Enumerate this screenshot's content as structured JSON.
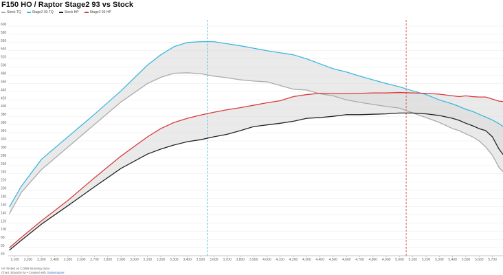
{
  "header": {
    "title": "F150 HO / Raptor  Stage2 93 vs Stock"
  },
  "footer": {
    "note": "Hs Tested on COBB Mustang Dyno",
    "credit_prefix": "Chart: Brandon M • Created with",
    "credit_link": "Datawrapper"
  },
  "chart_data": {
    "type": "line",
    "title": "F150 HO / Raptor  Stage2 93 vs Stock",
    "xlabel": "",
    "ylabel": "",
    "xlim": [
      2050,
      5780
    ],
    "ylim": [
      40,
      620
    ],
    "x_ticks": [
      2100,
      2200,
      2300,
      2400,
      2500,
      2600,
      2700,
      2800,
      2900,
      3000,
      3100,
      3200,
      3300,
      3400,
      3500,
      3600,
      3700,
      3800,
      3900,
      4000,
      4100,
      4200,
      4300,
      4400,
      4500,
      4600,
      4700,
      4800,
      4900,
      5000,
      5100,
      5200,
      5300,
      5400,
      5500,
      5600,
      5700
    ],
    "x_tick_labels": [
      "2,100",
      "2,200",
      "2,300",
      "2,400",
      "2,500",
      "2,600",
      "2,700",
      "2,800",
      "2,900",
      "3,000",
      "3,100",
      "3,200",
      "3,300",
      "3,400",
      "3,500",
      "3,600",
      "3,700",
      "3,800",
      "3,900",
      "4,000",
      "4,100",
      "4,200",
      "4,300",
      "4,400",
      "4,500",
      "4,600",
      "4,700",
      "4,800",
      "4,900",
      "5,000",
      "5,100",
      "5,200",
      "5,300",
      "5,400",
      "5,500",
      "5,600",
      "5,700"
    ],
    "y_ticks": [
      40,
      60,
      80,
      100,
      120,
      140,
      160,
      180,
      200,
      220,
      240,
      260,
      280,
      300,
      320,
      340,
      360,
      380,
      400,
      420,
      440,
      460,
      480,
      500,
      520,
      540,
      560,
      580,
      600
    ],
    "grid": true,
    "legend_position": "top-left",
    "x": [
      2060,
      2150,
      2300,
      2500,
      2700,
      2900,
      3100,
      3200,
      3300,
      3400,
      3500,
      3600,
      3700,
      3800,
      3900,
      4000,
      4100,
      4200,
      4300,
      4400,
      4500,
      4600,
      4700,
      4800,
      4900,
      5000,
      5100,
      5200,
      5300,
      5400,
      5450,
      5500,
      5550,
      5600,
      5650,
      5700,
      5750,
      5780
    ],
    "series": [
      {
        "name": "Stock TQ",
        "color": "#aaaaaa",
        "values": [
          143,
          195,
          250,
          305,
          360,
          415,
          460,
          475,
          485,
          486,
          484,
          478,
          474,
          469,
          466,
          464,
          455,
          446,
          444,
          435,
          430,
          420,
          414,
          409,
          404,
          400,
          388,
          377,
          365,
          350,
          345,
          337,
          330,
          320,
          305,
          285,
          255,
          245
        ]
      },
      {
        "name": "Stage2 93 TQ",
        "color": "#3ab7e0",
        "values": [
          160,
          210,
          275,
          330,
          385,
          442,
          505,
          530,
          550,
          560,
          562,
          562,
          557,
          552,
          546,
          540,
          535,
          530,
          520,
          508,
          496,
          488,
          478,
          469,
          460,
          452,
          442,
          433,
          420,
          410,
          404,
          397,
          392,
          385,
          378,
          371,
          362,
          355
        ]
      },
      {
        "name": "Stock HP",
        "color": "#222222",
        "values": [
          54,
          78,
          117,
          162,
          208,
          253,
          288,
          300,
          310,
          318,
          323,
          330,
          336,
          345,
          355,
          359,
          363,
          368,
          375,
          377,
          380,
          384,
          384,
          385,
          386,
          388,
          388,
          386,
          382,
          375,
          370,
          363,
          357,
          350,
          345,
          330,
          300,
          287
        ]
      },
      {
        "name": "Stage2 93 HP",
        "color": "#d93a3a",
        "values": [
          60,
          85,
          125,
          175,
          230,
          283,
          330,
          350,
          365,
          375,
          383,
          390,
          396,
          401,
          407,
          413,
          418,
          428,
          433,
          436,
          435,
          435,
          436,
          437,
          437,
          438,
          437,
          436,
          434,
          430,
          428,
          430,
          428,
          427,
          427,
          422,
          417,
          416
        ]
      }
    ],
    "reference_lines": [
      {
        "x": 3550,
        "color": "#3ab7e0"
      },
      {
        "x": 5050,
        "color": "#d93a3a"
      }
    ]
  }
}
